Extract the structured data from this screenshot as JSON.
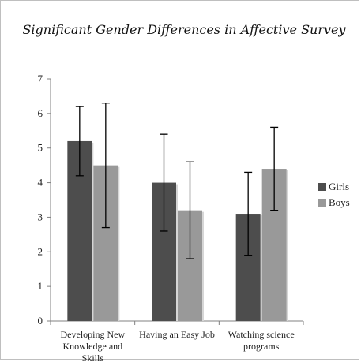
{
  "chart_data": {
    "type": "bar",
    "title": "Significant Gender Differences in Affective Survey",
    "xlabel": "",
    "ylabel": "",
    "categories": [
      [
        "Developing New",
        "Knowledge and",
        "Skills"
      ],
      [
        "Having an Easy Job"
      ],
      [
        "Watching science",
        "programs"
      ]
    ],
    "series": [
      {
        "name": "Girls",
        "color": "#4d4d4d",
        "values": [
          5.2,
          4.0,
          3.1
        ],
        "error_low": [
          4.2,
          2.6,
          1.9
        ],
        "error_high": [
          6.2,
          5.4,
          4.3
        ]
      },
      {
        "name": "Boys",
        "color": "#999999",
        "values": [
          4.5,
          3.2,
          4.4
        ],
        "error_low": [
          2.7,
          1.8,
          3.2
        ],
        "error_high": [
          6.3,
          4.6,
          5.6
        ]
      }
    ],
    "ylim": [
      0,
      7
    ],
    "yticks": [
      0,
      1,
      2,
      3,
      4,
      5,
      6,
      7
    ],
    "grid": false,
    "legend_position": "right"
  }
}
